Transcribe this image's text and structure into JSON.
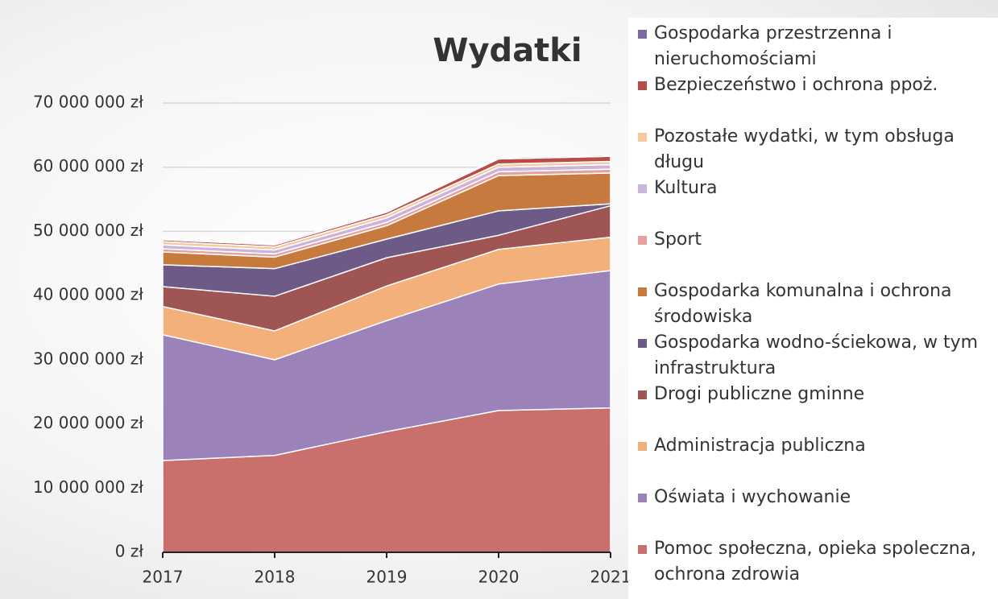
{
  "chart_data": {
    "type": "stacked_area",
    "title": "Wydatki",
    "categories": [
      "2017",
      "2018",
      "2019",
      "2020",
      "2021"
    ],
    "ylim": [
      0,
      70000000
    ],
    "yticks": [
      {
        "value": 0,
        "label": "0 zł"
      },
      {
        "value": 10000000,
        "label": "10 000 000 zł"
      },
      {
        "value": 20000000,
        "label": "20 000 000 zł"
      },
      {
        "value": 30000000,
        "label": "30 000 000 zł"
      },
      {
        "value": 40000000,
        "label": "40 000 000 zł"
      },
      {
        "value": 50000000,
        "label": "50 000 000 zł"
      },
      {
        "value": 60000000,
        "label": "60 000 000 zł"
      },
      {
        "value": 70000000,
        "label": "70 000 000 zł"
      }
    ],
    "grid": true,
    "series": [
      {
        "name": "Pomoc społeczna, opieka spoleczna, ochrona zdrowia",
        "color": "#c9706e",
        "values": [
          14300000,
          15100000,
          18800000,
          22100000,
          22500000
        ]
      },
      {
        "name": "Oświata i wychowanie",
        "color": "#9b82b8",
        "values": [
          19600000,
          14900000,
          17300000,
          19700000,
          21400000
        ]
      },
      {
        "name": "Administracja publiczna",
        "color": "#f4b07a",
        "values": [
          4400000,
          4500000,
          5400000,
          5400000,
          5200000
        ]
      },
      {
        "name": "Drogi publiczne gminne",
        "color": "#9e5553",
        "values": [
          3100000,
          5400000,
          4400000,
          2200000,
          4900000
        ]
      },
      {
        "name": "Gospodarka wodno-ściekowa, w tym infrastruktura",
        "color": "#6e5a86",
        "values": [
          3400000,
          4300000,
          2900000,
          3800000,
          300000
        ]
      },
      {
        "name": "Gospodarka komunalna i ochrona środowiska",
        "color": "#c77a3e",
        "values": [
          2000000,
          1800000,
          2100000,
          5500000,
          4800000
        ]
      },
      {
        "name": "Sport",
        "color": "#e8a09e",
        "values": [
          500000,
          500000,
          500000,
          600000,
          600000
        ]
      },
      {
        "name": "Kultura",
        "color": "#c8b4dc",
        "values": [
          600000,
          600000,
          700000,
          700000,
          700000
        ]
      },
      {
        "name": "Pozostałe wydatki, w tym obsługa długu",
        "color": "#f8c9a0",
        "values": [
          500000,
          500000,
          500000,
          500000,
          500000
        ]
      },
      {
        "name": "Bezpieczeństwo i ochrona ppoż.",
        "color": "#b84c48",
        "values": [
          300000,
          300000,
          400000,
          800000,
          800000
        ]
      },
      {
        "name": "Gospodarka przestrzenna i nieruchomościami",
        "color": "#7d6aa0",
        "values": [
          200000,
          200000,
          200000,
          200000,
          200000
        ]
      }
    ]
  }
}
